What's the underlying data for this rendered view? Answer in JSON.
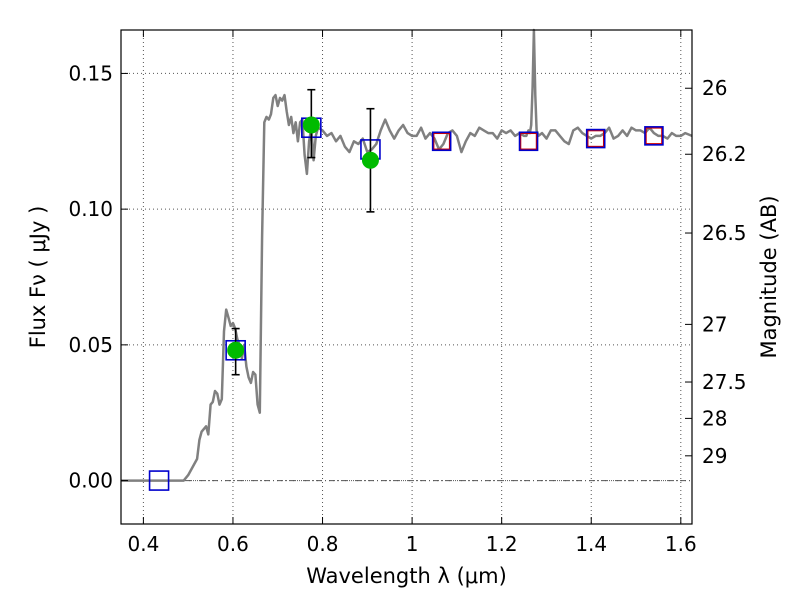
{
  "chart_data": {
    "type": "line",
    "xlabel": "Wavelength  λ (μm)",
    "ylabel": "Flux  Fν  ( μJy )",
    "y2label": "Magnitude (AB)",
    "xlim": [
      0.35,
      1.625
    ],
    "ylim": [
      -0.016,
      0.166
    ],
    "grid": true,
    "x_ticks": [
      {
        "value": 0.4,
        "label": "0.4"
      },
      {
        "value": 0.6,
        "label": "0.6"
      },
      {
        "value": 0.8,
        "label": "0.8"
      },
      {
        "value": 1.0,
        "label": "1"
      },
      {
        "value": 1.2,
        "label": "1.2"
      },
      {
        "value": 1.4,
        "label": "1.4"
      },
      {
        "value": 1.6,
        "label": "1.6"
      }
    ],
    "y_ticks": [
      {
        "value": 0.0,
        "label": "0.00"
      },
      {
        "value": 0.05,
        "label": "0.05"
      },
      {
        "value": 0.1,
        "label": "0.10"
      },
      {
        "value": 0.15,
        "label": "0.15"
      }
    ],
    "y2_ticks": [
      {
        "value": 26,
        "label": "26"
      },
      {
        "value": 26.2,
        "label": "26.2"
      },
      {
        "value": 26.5,
        "label": "26.5"
      },
      {
        "value": 27,
        "label": "27"
      },
      {
        "value": 27.5,
        "label": "27.5"
      },
      {
        "value": 28,
        "label": "28"
      },
      {
        "value": 29,
        "label": "29"
      }
    ],
    "model_spectrum": {
      "color": "#808080",
      "x": [
        0.35,
        0.49,
        0.5,
        0.52,
        0.525,
        0.53,
        0.54,
        0.545,
        0.55,
        0.555,
        0.56,
        0.565,
        0.57,
        0.575,
        0.58,
        0.585,
        0.59,
        0.595,
        0.6,
        0.605,
        0.61,
        0.615,
        0.62,
        0.625,
        0.63,
        0.635,
        0.64,
        0.645,
        0.65,
        0.655,
        0.66,
        0.665,
        0.67,
        0.675,
        0.68,
        0.685,
        0.69,
        0.695,
        0.7,
        0.705,
        0.71,
        0.715,
        0.72,
        0.725,
        0.73,
        0.735,
        0.74,
        0.745,
        0.75,
        0.755,
        0.76,
        0.765,
        0.77,
        0.775,
        0.78,
        0.785,
        0.79,
        0.8,
        0.81,
        0.82,
        0.83,
        0.84,
        0.85,
        0.86,
        0.87,
        0.88,
        0.89,
        0.9,
        0.91,
        0.92,
        0.93,
        0.94,
        0.95,
        0.96,
        0.97,
        0.98,
        0.99,
        1.0,
        1.01,
        1.02,
        1.03,
        1.04,
        1.05,
        1.06,
        1.07,
        1.08,
        1.09,
        1.1,
        1.11,
        1.12,
        1.13,
        1.14,
        1.15,
        1.16,
        1.17,
        1.18,
        1.19,
        1.2,
        1.21,
        1.22,
        1.23,
        1.24,
        1.25,
        1.255,
        1.26,
        1.263,
        1.266,
        1.269,
        1.272,
        1.275,
        1.278,
        1.282,
        1.29,
        1.3,
        1.31,
        1.32,
        1.33,
        1.34,
        1.35,
        1.36,
        1.37,
        1.38,
        1.39,
        1.4,
        1.41,
        1.42,
        1.43,
        1.44,
        1.45,
        1.46,
        1.47,
        1.48,
        1.49,
        1.5,
        1.51,
        1.52,
        1.53,
        1.54,
        1.55,
        1.56,
        1.57,
        1.58,
        1.59,
        1.6,
        1.61,
        1.625
      ],
      "y": [
        0.0,
        0.0,
        0.002,
        0.008,
        0.015,
        0.018,
        0.02,
        0.017,
        0.028,
        0.029,
        0.033,
        0.032,
        0.028,
        0.03,
        0.055,
        0.063,
        0.06,
        0.057,
        0.058,
        0.056,
        0.052,
        0.05,
        0.045,
        0.05,
        0.042,
        0.038,
        0.036,
        0.04,
        0.039,
        0.028,
        0.025,
        0.09,
        0.132,
        0.134,
        0.133,
        0.135,
        0.141,
        0.142,
        0.138,
        0.141,
        0.14,
        0.142,
        0.136,
        0.131,
        0.134,
        0.128,
        0.132,
        0.125,
        0.132,
        0.133,
        0.12,
        0.113,
        0.125,
        0.13,
        0.118,
        0.127,
        0.13,
        0.129,
        0.127,
        0.128,
        0.125,
        0.127,
        0.123,
        0.121,
        0.125,
        0.124,
        0.126,
        0.121,
        0.122,
        0.124,
        0.129,
        0.133,
        0.129,
        0.126,
        0.129,
        0.131,
        0.128,
        0.127,
        0.127,
        0.13,
        0.126,
        0.128,
        0.126,
        0.122,
        0.124,
        0.128,
        0.129,
        0.127,
        0.121,
        0.125,
        0.128,
        0.127,
        0.13,
        0.129,
        0.128,
        0.128,
        0.126,
        0.129,
        0.128,
        0.129,
        0.127,
        0.128,
        0.127,
        0.127,
        0.129,
        0.128,
        0.131,
        0.145,
        0.166,
        0.142,
        0.129,
        0.127,
        0.128,
        0.126,
        0.129,
        0.129,
        0.127,
        0.125,
        0.124,
        0.129,
        0.13,
        0.128,
        0.127,
        0.126,
        0.127,
        0.127,
        0.128,
        0.13,
        0.126,
        0.127,
        0.129,
        0.127,
        0.13,
        0.129,
        0.129,
        0.128,
        0.13,
        0.128,
        0.127,
        0.127,
        0.126,
        0.128,
        0.127,
        0.127,
        0.128,
        0.127
      ]
    },
    "model_bands": {
      "color": "#0000cc",
      "x": [
        0.435,
        0.606,
        0.775,
        0.907,
        1.066,
        1.26,
        1.41,
        1.54
      ],
      "y": [
        0.0,
        0.048,
        0.13,
        0.122,
        0.125,
        0.125,
        0.126,
        0.127
      ]
    },
    "observed_bands": {
      "color": "#cc0000",
      "x": [
        1.066,
        1.26,
        1.41,
        1.54
      ],
      "y": [
        0.125,
        0.125,
        0.126,
        0.127
      ]
    },
    "measurements": {
      "color": "#00bb00",
      "x": [
        0.606,
        0.775,
        0.907
      ],
      "y": [
        0.048,
        0.131,
        0.118
      ],
      "y_low": [
        0.039,
        0.119,
        0.099
      ],
      "y_high": [
        0.056,
        0.144,
        0.137
      ]
    }
  }
}
